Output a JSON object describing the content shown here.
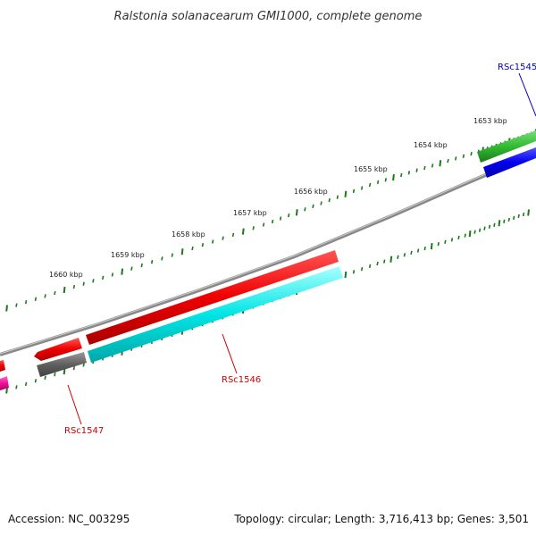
{
  "title": "Ralstonia solanacearum GMI1000, complete genome",
  "footer": {
    "accession": "Accession: NC_003295",
    "topology": "Topology: circular; Length: 3,716,413 bp; Genes: 3,501"
  },
  "scale_labels": [
    "1653 kbp",
    "1654 kbp",
    "1655 kbp",
    "1656 kbp",
    "1657 kbp",
    "1658 kbp",
    "1659 kbp",
    "1660 kbp"
  ],
  "gene_labels": [
    {
      "text": "RSc1545",
      "color": "#0000bb"
    },
    {
      "text": "RSc1546",
      "color": "#cc0000"
    },
    {
      "text": "RSc1547",
      "color": "#cc0000"
    }
  ],
  "colors": {
    "backbone": "#808080",
    "ticks": "#1a7a1a",
    "red_gene": "#ee0000",
    "cyan_gene": "#00e0e0",
    "green_gene": "#33bb33",
    "blue_gene": "#0000ee",
    "gray_gene": "#606060",
    "magenta_gene": "#ee1199"
  }
}
